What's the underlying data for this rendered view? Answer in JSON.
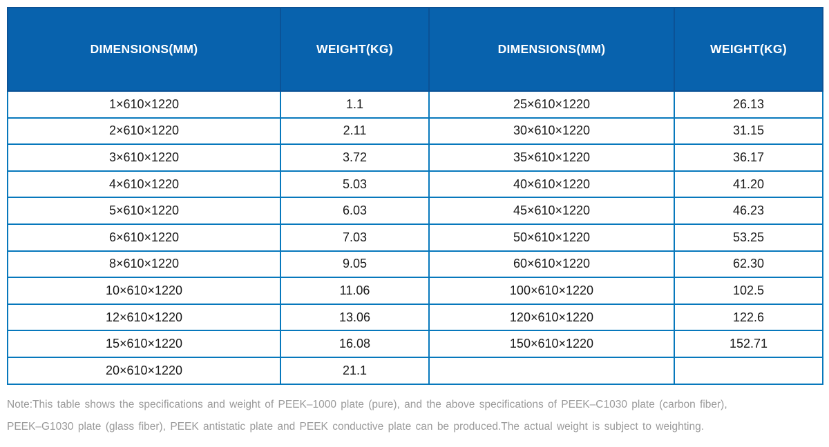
{
  "table": {
    "headers": [
      "DIMENSIONS(MM)",
      "WEIGHT(KG)",
      "DIMENSIONS(MM)",
      "WEIGHT(KG)"
    ],
    "rows": [
      [
        "1×610×1220",
        "1.1",
        "25×610×1220",
        "26.13"
      ],
      [
        "2×610×1220",
        "2.11",
        "30×610×1220",
        "31.15"
      ],
      [
        "3×610×1220",
        "3.72",
        "35×610×1220",
        "36.17"
      ],
      [
        "4×610×1220",
        "5.03",
        "40×610×1220",
        "41.20"
      ],
      [
        "5×610×1220",
        "6.03",
        "45×610×1220",
        "46.23"
      ],
      [
        "6×610×1220",
        "7.03",
        "50×610×1220",
        "53.25"
      ],
      [
        "8×610×1220",
        "9.05",
        "60×610×1220",
        "62.30"
      ],
      [
        "10×610×1220",
        "11.06",
        "100×610×1220",
        "102.5"
      ],
      [
        "12×610×1220",
        "13.06",
        "120×610×1220",
        "122.6"
      ],
      [
        "15×610×1220",
        "16.08",
        "150×610×1220",
        "152.71"
      ],
      [
        "20×610×1220",
        "21.1",
        "",
        ""
      ]
    ]
  },
  "note": {
    "line1": "Note:This table shows the specifications and weight of PEEK–1000 plate (pure), and the above specifications of PEEK–C1030 plate (carbon fiber),",
    "line2": "PEEK–G1030 plate (glass fiber), PEEK antistatic plate and PEEK conductive plate can be produced.The actual weight is subject to weighting."
  },
  "colors": {
    "header_bg": "#0862AD",
    "header_text": "#FFFFFF",
    "header_divider": "#0B5296",
    "body_border": "#0778BC",
    "cell_text": "#1A1A1A",
    "note_text": "#9A9A9A"
  }
}
